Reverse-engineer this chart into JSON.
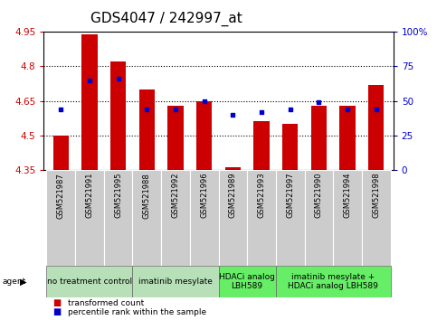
{
  "title": "GDS4047 / 242997_at",
  "samples": [
    "GSM521987",
    "GSM521991",
    "GSM521995",
    "GSM521988",
    "GSM521992",
    "GSM521996",
    "GSM521989",
    "GSM521993",
    "GSM521997",
    "GSM521990",
    "GSM521994",
    "GSM521998"
  ],
  "bar_values": [
    4.5,
    4.94,
    4.82,
    4.7,
    4.63,
    4.65,
    4.36,
    4.56,
    4.55,
    4.63,
    4.63,
    4.72
  ],
  "dot_values": [
    44,
    65,
    66,
    44,
    44,
    50,
    40,
    42,
    44,
    49,
    44,
    44
  ],
  "bar_color": "#cc0000",
  "dot_color": "#0000cc",
  "ylim_left": [
    4.35,
    4.95
  ],
  "ylim_right": [
    0,
    100
  ],
  "yticks_left": [
    4.35,
    4.5,
    4.65,
    4.8,
    4.95
  ],
  "yticks_right": [
    0,
    25,
    50,
    75,
    100
  ],
  "ytick_labels_right": [
    "0",
    "25",
    "50",
    "75",
    "100%"
  ],
  "hlines": [
    4.5,
    4.65,
    4.8
  ],
  "agent_groups": [
    {
      "label": "no treatment control",
      "start": 0,
      "end": 3,
      "color": "#b8e0b8"
    },
    {
      "label": "imatinib mesylate",
      "start": 3,
      "end": 6,
      "color": "#b8e0b8"
    },
    {
      "label": "HDACi analog\nLBH589",
      "start": 6,
      "end": 8,
      "color": "#66ee66"
    },
    {
      "label": "imatinib mesylate +\nHDACi analog LBH589",
      "start": 8,
      "end": 12,
      "color": "#66ee66"
    }
  ],
  "agent_label": "agent",
  "legend_items": [
    {
      "label": "transformed count",
      "color": "#cc0000"
    },
    {
      "label": "percentile rank within the sample",
      "color": "#0000cc"
    }
  ],
  "bar_width": 0.55,
  "tick_label_color_left": "#cc0000",
  "tick_label_color_right": "#0000cc",
  "title_fontsize": 11,
  "tick_fontsize": 7.5,
  "sample_fontsize": 6,
  "agent_fontsize": 6.5,
  "legend_fontsize": 6.5
}
